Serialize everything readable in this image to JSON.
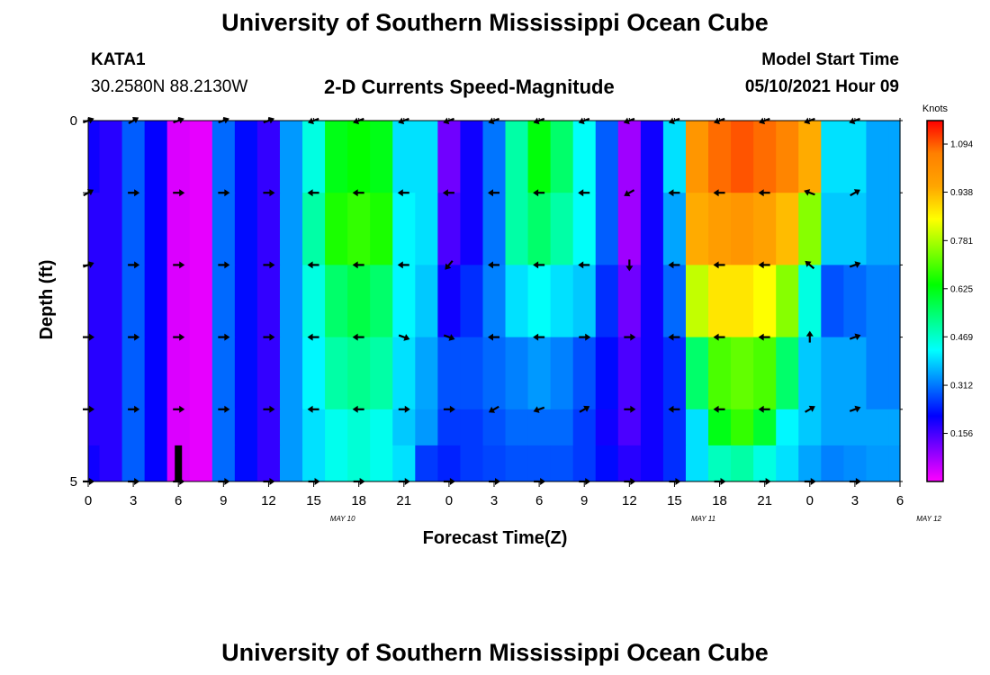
{
  "header": {
    "title": "University of Southern Mississippi Ocean Cube",
    "station": "KATA1",
    "coordinates": "30.2580N  88.2130W",
    "subtitle": "2-D Currents Speed-Magnitude",
    "model_start_label": "Model Start Time",
    "model_start_value": "05/10/2021 Hour 09"
  },
  "footer": {
    "title": "University of Southern Mississippi Ocean Cube"
  },
  "colors": {
    "scale": [
      "#ff00ff",
      "#8000ff",
      "#0000ff",
      "#0080ff",
      "#00ffff",
      "#00ff80",
      "#00ff00",
      "#80ff00",
      "#ffff00",
      "#ffa500",
      "#ff8000",
      "#ff0000"
    ],
    "arrow": "#000000"
  },
  "chart_data": {
    "type": "heatmap",
    "title": "2-D Currents Speed-Magnitude",
    "xlabel": "Forecast Time(Z)",
    "ylabel": "Depth (ft)",
    "x_tick_labels": [
      "0",
      "3",
      "6",
      "9",
      "12",
      "15",
      "18",
      "21",
      "0",
      "3",
      "6",
      "9",
      "12",
      "15",
      "18",
      "21",
      "0",
      "3",
      "6"
    ],
    "date_labels": [
      {
        "text": "MAY 10",
        "at_tick": 6
      },
      {
        "text": "MAY 11",
        "at_tick": 14
      },
      {
        "text": "MAY 12",
        "at_tick": 19
      }
    ],
    "y_tick_labels": [
      "0",
      "5"
    ],
    "ylim": [
      0,
      5
    ],
    "hours": [
      0,
      1.5,
      3,
      4.5,
      6,
      7.5,
      9,
      10.5,
      12,
      13.5,
      15,
      16.5,
      18,
      19.5,
      21,
      22.5,
      24,
      25.5,
      27,
      28.5,
      30,
      31.5,
      33,
      34.5,
      36,
      37.5,
      39,
      40.5,
      42,
      43.5,
      45,
      46.5,
      48,
      49.5,
      51,
      52.5,
      54
    ],
    "depth_layers_ft": [
      0.5,
      1.5,
      2.5,
      3.5,
      4.5
    ],
    "speed_knots": [
      [
        0.2,
        0.18,
        0.29,
        0.21,
        0.03,
        0.02,
        0.3,
        0.22,
        0.17,
        0.34,
        0.45,
        0.62,
        0.64,
        0.62,
        0.4,
        0.4,
        0.12,
        0.2,
        0.31,
        0.5,
        0.63,
        0.55,
        0.43,
        0.29,
        0.08,
        0.2,
        0.4,
        1.0,
        1.08,
        1.1,
        1.08,
        1.05,
        0.95,
        0.4,
        0.4,
        0.35,
        0.35
      ],
      [
        0.18,
        0.18,
        0.29,
        0.21,
        0.03,
        0.02,
        0.3,
        0.22,
        0.17,
        0.34,
        0.5,
        0.66,
        0.68,
        0.66,
        0.42,
        0.4,
        0.15,
        0.2,
        0.31,
        0.5,
        0.55,
        0.5,
        0.43,
        0.29,
        0.08,
        0.2,
        0.35,
        0.95,
        0.98,
        1.0,
        0.97,
        0.93,
        0.75,
        0.38,
        0.38,
        0.35,
        0.35
      ],
      [
        0.18,
        0.18,
        0.29,
        0.21,
        0.03,
        0.02,
        0.3,
        0.22,
        0.17,
        0.34,
        0.45,
        0.55,
        0.58,
        0.55,
        0.42,
        0.38,
        0.2,
        0.25,
        0.32,
        0.4,
        0.43,
        0.4,
        0.38,
        0.25,
        0.12,
        0.2,
        0.3,
        0.8,
        0.88,
        0.88,
        0.85,
        0.75,
        0.45,
        0.28,
        0.3,
        0.32,
        0.32
      ],
      [
        0.18,
        0.18,
        0.29,
        0.21,
        0.03,
        0.02,
        0.3,
        0.22,
        0.17,
        0.34,
        0.42,
        0.5,
        0.52,
        0.5,
        0.4,
        0.35,
        0.28,
        0.28,
        0.3,
        0.32,
        0.34,
        0.32,
        0.28,
        0.22,
        0.15,
        0.2,
        0.25,
        0.55,
        0.7,
        0.72,
        0.7,
        0.55,
        0.38,
        0.35,
        0.35,
        0.32,
        0.32
      ],
      [
        0.18,
        0.18,
        0.29,
        0.21,
        0.03,
        0.02,
        0.3,
        0.22,
        0.17,
        0.34,
        0.4,
        0.44,
        0.46,
        0.44,
        0.38,
        0.34,
        0.26,
        0.26,
        0.28,
        0.3,
        0.3,
        0.3,
        0.26,
        0.2,
        0.15,
        0.2,
        0.25,
        0.4,
        0.62,
        0.68,
        0.6,
        0.42,
        0.38,
        0.35,
        0.35,
        0.35,
        0.35
      ]
    ],
    "bottom_layer_4_5_to_5_ft_knots": [
      0.2,
      0.18,
      0.29,
      0.21,
      0.03,
      0.02,
      0.3,
      0.22,
      0.17,
      0.34,
      0.4,
      0.44,
      0.46,
      0.44,
      0.4,
      0.26,
      0.24,
      0.26,
      0.27,
      0.28,
      0.28,
      0.28,
      0.26,
      0.22,
      0.18,
      0.2,
      0.25,
      0.4,
      0.48,
      0.5,
      0.45,
      0.4,
      0.35,
      0.32,
      0.33,
      0.34,
      0.34
    ],
    "arrow_hours": [
      0,
      3,
      6,
      9,
      12,
      15,
      18,
      21,
      24,
      27,
      30,
      33,
      36,
      39,
      42,
      45,
      48,
      51
    ],
    "arrow_depths_ft": [
      0,
      1,
      2,
      3,
      4,
      5
    ],
    "arrow_direction_deg": [
      [
        20,
        30,
        20,
        20,
        20,
        200,
        200,
        200,
        200,
        200,
        200,
        200,
        200,
        200,
        200,
        200,
        200,
        200
      ],
      [
        30,
        0,
        0,
        0,
        0,
        180,
        180,
        180,
        180,
        180,
        180,
        180,
        210,
        180,
        180,
        180,
        160,
        30
      ],
      [
        20,
        0,
        0,
        0,
        0,
        180,
        180,
        180,
        230,
        180,
        180,
        180,
        270,
        180,
        180,
        180,
        140,
        20
      ],
      [
        0,
        0,
        0,
        0,
        0,
        180,
        180,
        340,
        340,
        180,
        180,
        0,
        0,
        180,
        180,
        180,
        90,
        20
      ],
      [
        0,
        0,
        0,
        0,
        0,
        180,
        180,
        0,
        0,
        210,
        200,
        30,
        0,
        180,
        180,
        180,
        30,
        20
      ],
      [
        0,
        0,
        0,
        0,
        0,
        0,
        0,
        0,
        0,
        0,
        0,
        0,
        0,
        0,
        0,
        0,
        0,
        0
      ]
    ],
    "instrument_marker": {
      "hour": 6,
      "depth_from_ft": 4.5,
      "depth_to_ft": 5
    },
    "colorbar": {
      "label": "Knots",
      "range": [
        0,
        1.17
      ],
      "tick_values": [
        0.156,
        0.312,
        0.469,
        0.625,
        0.781,
        0.938,
        1.094
      ],
      "tick_labels": [
        "0.156",
        "0.312",
        "0.469",
        "0.625",
        "0.781",
        "0.938",
        "1.094"
      ]
    }
  }
}
